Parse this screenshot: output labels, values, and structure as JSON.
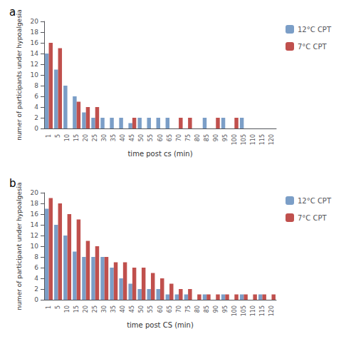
{
  "chart_data": [
    {
      "type": "bar",
      "title": "a",
      "xlabel": "time post cs (min)",
      "ylabel": "numer of participants under hypoalgesia",
      "categories": [
        "1",
        "5",
        "10",
        "15",
        "20",
        "25",
        "30",
        "35",
        "40",
        "45",
        "50",
        "55",
        "60",
        "65",
        "70",
        "75",
        "80",
        "85",
        "90",
        "95",
        "100",
        "105",
        "110",
        "115",
        "120"
      ],
      "series": [
        {
          "name": "12°C CPT",
          "color": "#7b9ec7",
          "values": [
            14,
            11,
            8,
            6,
            3,
            2,
            2,
            2,
            2,
            1,
            2,
            2,
            2,
            2,
            0,
            0,
            0,
            2,
            0,
            2,
            0,
            2,
            0,
            0,
            0
          ]
        },
        {
          "name": "7°C CPT",
          "color": "#c0504d",
          "values": [
            16,
            15,
            0,
            5,
            4,
            4,
            0,
            0,
            0,
            2,
            0,
            0,
            0,
            0,
            2,
            2,
            0,
            0,
            2,
            0,
            2,
            0,
            0,
            0,
            0
          ]
        }
      ],
      "ylim": [
        0,
        20
      ],
      "yticks": [
        0,
        2,
        4,
        6,
        8,
        10,
        12,
        14,
        16,
        18,
        20
      ],
      "grid": false,
      "legend": "right"
    },
    {
      "type": "bar",
      "title": "b",
      "xlabel": "time post CS (min)",
      "ylabel": "numer of participant under hypoalgesia",
      "categories": [
        "1",
        "5",
        "10",
        "15",
        "20",
        "25",
        "30",
        "35",
        "40",
        "45",
        "50",
        "55",
        "60",
        "65",
        "70",
        "75",
        "80",
        "85",
        "90",
        "95",
        "100",
        "105",
        "110",
        "115",
        "120"
      ],
      "series": [
        {
          "name": "12°C CPT",
          "color": "#7b9ec7",
          "values": [
            17,
            14,
            12,
            9,
            8,
            8,
            8,
            6,
            4,
            3,
            2,
            2,
            2,
            1,
            1,
            1,
            0,
            1,
            0,
            1,
            0,
            1,
            0,
            1,
            0
          ]
        },
        {
          "name": "7°C CPT",
          "color": "#c0504d",
          "values": [
            19,
            18,
            16,
            15,
            11,
            10,
            8,
            7,
            7,
            6,
            6,
            5,
            4,
            3,
            2,
            2,
            1,
            1,
            1,
            1,
            1,
            1,
            1,
            1,
            1
          ]
        }
      ],
      "ylim": [
        0,
        20
      ],
      "yticks": [
        0,
        2,
        4,
        6,
        8,
        10,
        12,
        14,
        16,
        18,
        20
      ],
      "grid": false,
      "legend": "right"
    }
  ]
}
